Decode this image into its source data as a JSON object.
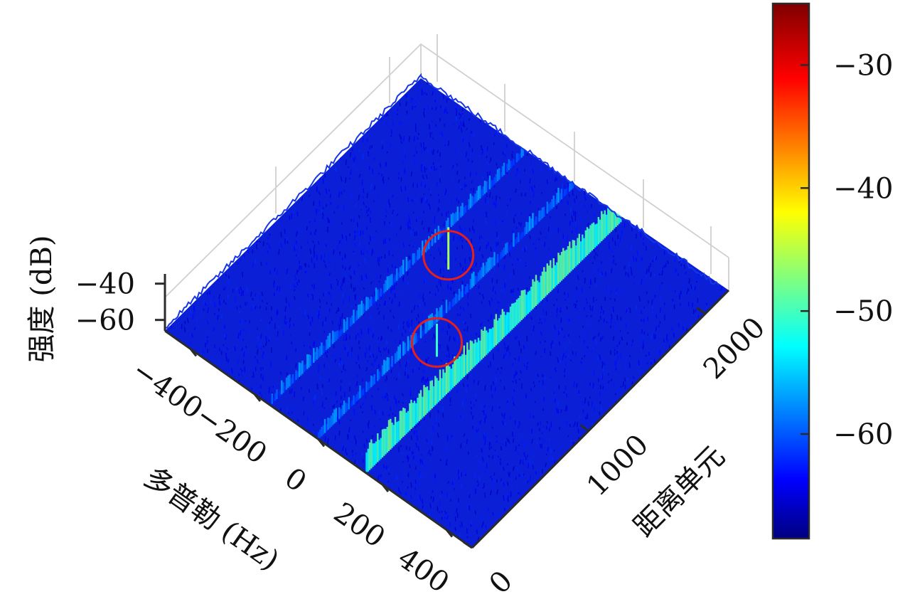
{
  "chart_data": {
    "type": "surface",
    "title": "",
    "xlabel": "多普勒 (Hz)",
    "ylabel": "距离单元",
    "zlabel": "强度 (dB)",
    "x_ticks": [
      "−400",
      "−200",
      "0",
      "200",
      "400"
    ],
    "y_ticks": [
      "0",
      "1000",
      "2000"
    ],
    "z_ticks": [
      "−40",
      "−60"
    ],
    "colorbar": {
      "ticks": [
        "−30",
        "−40",
        "−50",
        "−60"
      ],
      "tick_values": [
        -30,
        -40,
        -50,
        -60
      ],
      "range": [
        -68.5,
        -25
      ],
      "colormap": "jet"
    },
    "background_level_db": -64,
    "ridges": [
      {
        "doppler_hz": -150,
        "level_db": -56
      },
      {
        "doppler_hz": 0,
        "level_db": -56
      },
      {
        "doppler_hz": 150,
        "level_db": -47
      }
    ],
    "highlighted_peaks": [
      {
        "doppler_hz": -90,
        "level_db": -45,
        "marker_color": "#e5201c"
      },
      {
        "doppler_hz": 50,
        "level_db": -50,
        "marker_color": "#e5201c"
      }
    ]
  }
}
